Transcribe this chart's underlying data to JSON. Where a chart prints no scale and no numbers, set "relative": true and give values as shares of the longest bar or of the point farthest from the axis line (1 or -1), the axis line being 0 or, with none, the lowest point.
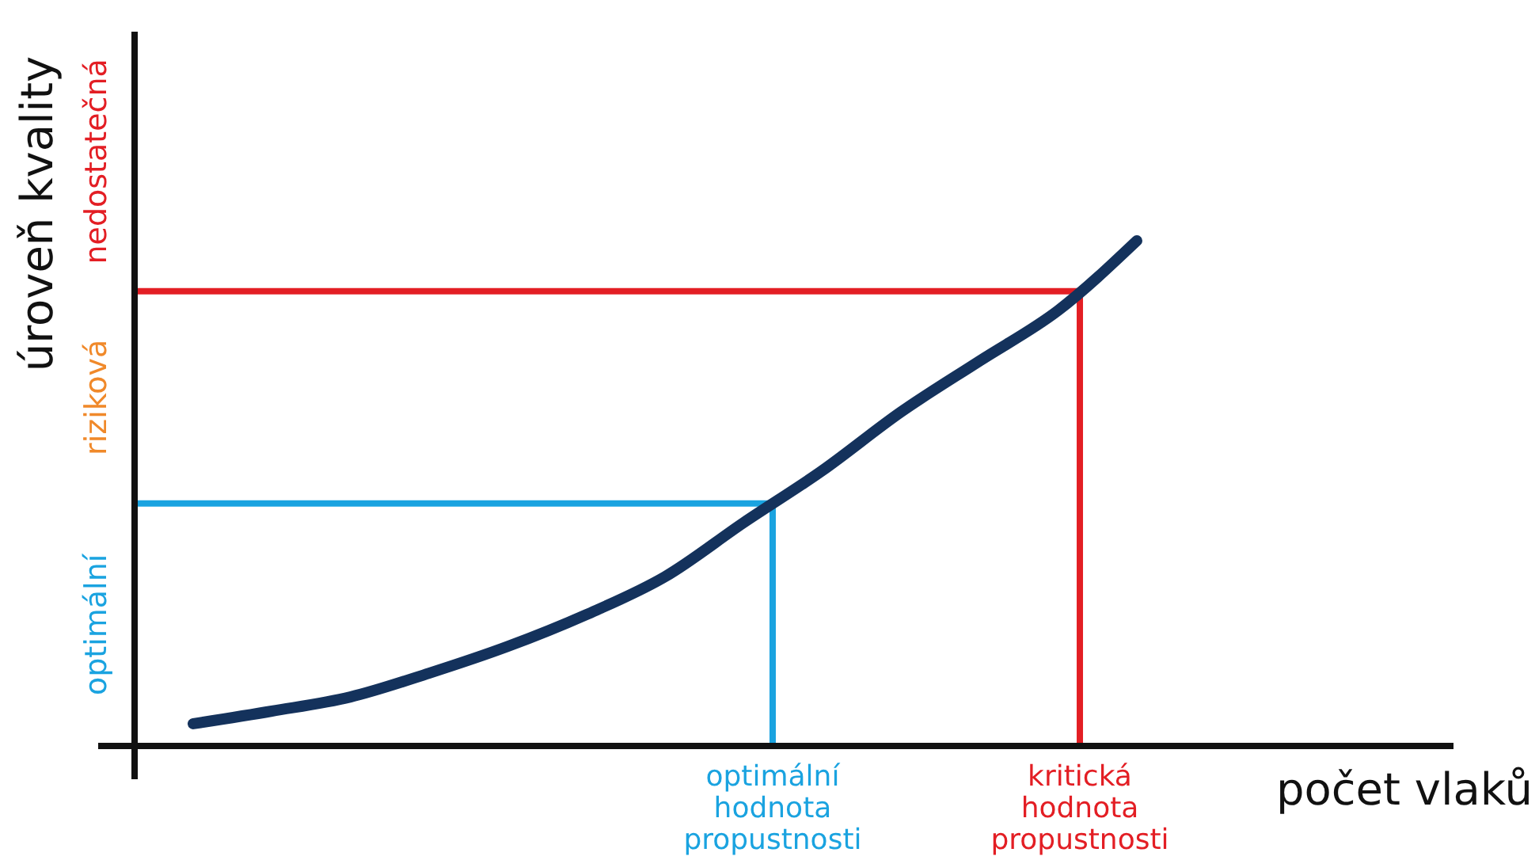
{
  "chart_data": {
    "type": "line",
    "relative": true,
    "xlabel": "počet vlaků",
    "ylabel": "úroveň kvality",
    "categories": [
      null,
      null,
      null,
      null,
      null,
      null,
      null,
      null,
      null,
      null,
      null,
      null,
      null
    ],
    "series": [
      {
        "color": "#14325c",
        "values": [
          0.044,
          0.069,
          0.097,
          0.144,
          0.197,
          0.26,
          0.335,
          0.442,
          0.545,
          0.661,
          0.762,
          0.862,
          1
        ]
      }
    ],
    "ref_lines": [
      {
        "axis": "y",
        "value": 0.48,
        "color": "#1aa3e0"
      },
      {
        "axis": "y",
        "value": 0.9,
        "color": "#e31e24"
      }
    ],
    "annotations": [
      "optimální",
      "riziková",
      "nedostatečná",
      "optimální hodnota propustnosti",
      "kritická hodnota propustnosti"
    ]
  }
}
